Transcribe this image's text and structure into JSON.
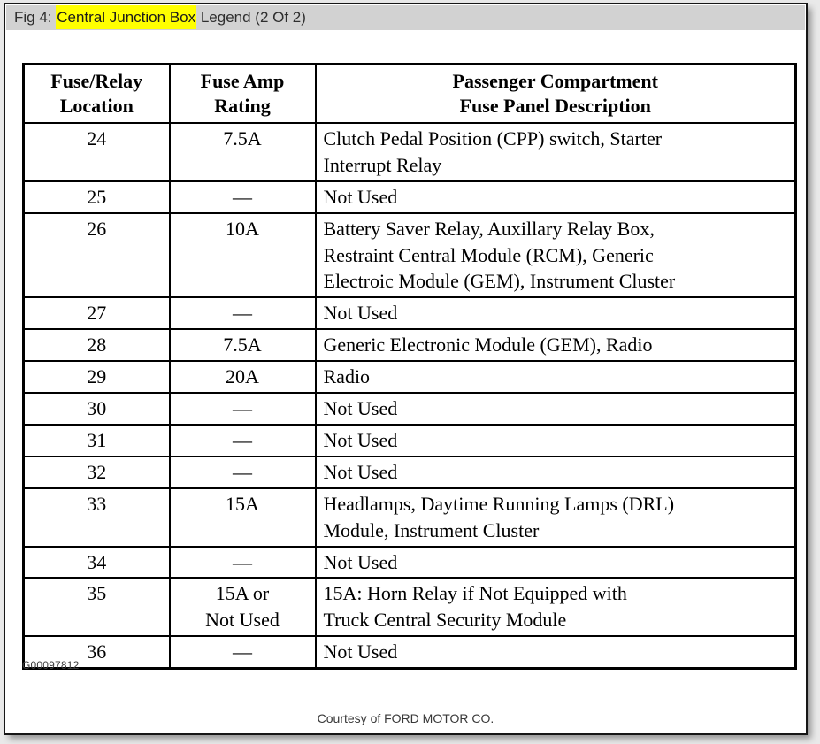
{
  "titlebar": {
    "prefix": "Fig 4: ",
    "highlight": "Central Junction Box",
    "suffix": " Legend (2 Of 2)",
    "highlight_color": "#ffff00",
    "bar_color": "#d2d2d2"
  },
  "table": {
    "headers": [
      "Fuse/Relay\nLocation",
      "Fuse Amp\nRating",
      "Passenger Compartment\nFuse Panel Description"
    ],
    "rows": [
      {
        "location": "24",
        "rating": "7.5A",
        "description": "Clutch Pedal Position (CPP) switch, Starter\nInterrupt Relay"
      },
      {
        "location": "25",
        "rating": "—",
        "description": "Not Used"
      },
      {
        "location": "26",
        "rating": "10A",
        "description": "Battery Saver Relay, Auxillary Relay Box,\nRestraint Central Module (RCM), Generic\nElectroic Module (GEM), Instrument Cluster"
      },
      {
        "location": "27",
        "rating": "—",
        "description": "Not Used"
      },
      {
        "location": "28",
        "rating": "7.5A",
        "description": "Generic Electronic Module (GEM), Radio"
      },
      {
        "location": "29",
        "rating": "20A",
        "description": "Radio"
      },
      {
        "location": "30",
        "rating": "—",
        "description": "Not Used"
      },
      {
        "location": "31",
        "rating": "—",
        "description": "Not Used"
      },
      {
        "location": "32",
        "rating": "—",
        "description": "Not Used"
      },
      {
        "location": "33",
        "rating": "15A",
        "description": "Headlamps, Daytime Running Lamps (DRL)\nModule, Instrument Cluster"
      },
      {
        "location": "34",
        "rating": "—",
        "description": "Not Used"
      },
      {
        "location": "35",
        "rating": "15A or\nNot Used",
        "description": "15A: Horn Relay if Not Equipped with\nTruck Central Security Module"
      },
      {
        "location": "36",
        "rating": "—",
        "description": "Not Used"
      }
    ]
  },
  "footer": {
    "figure_id": "G00097812",
    "courtesy": "Courtesy of FORD MOTOR CO."
  }
}
